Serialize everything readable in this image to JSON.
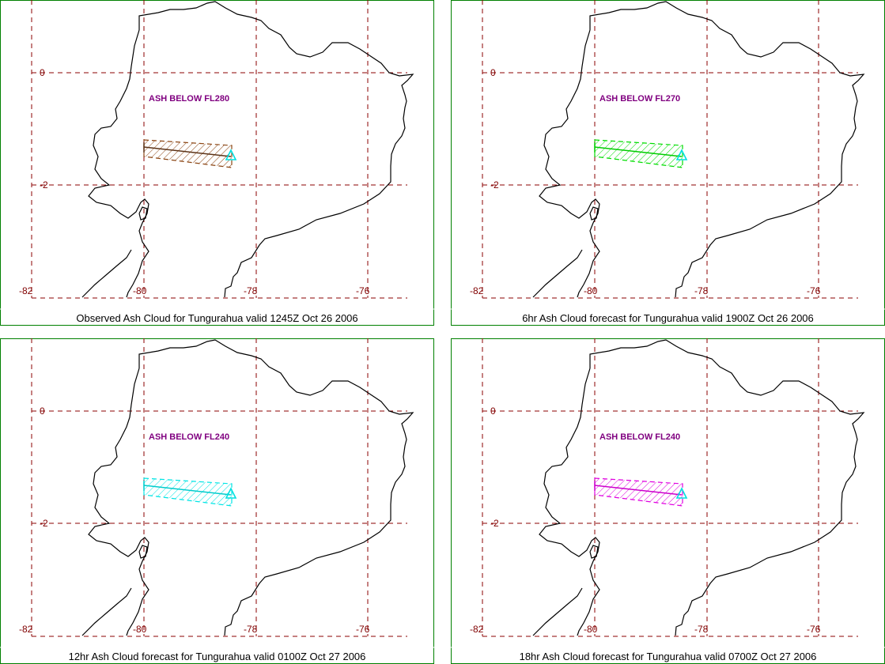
{
  "colors": {
    "frame": "#008000",
    "grid": "#8b0000",
    "tick_label": "#800000",
    "coast": "#000000",
    "ash_label": "#800080",
    "volcano": "#00e0e0"
  },
  "grid_labels": {
    "lat": [
      "0",
      "-2"
    ],
    "lon": [
      "-82",
      "-80",
      "-78",
      "-76"
    ]
  },
  "volcano_icon": "triangle-icon",
  "panels": [
    {
      "ash_label": "ASH BELOW FL280",
      "caption": "Observed Ash Cloud for Tungurahua valid 1245Z Oct 26 2006",
      "cloud_color": "#8b4513",
      "line_color": "#5c3317"
    },
    {
      "ash_label": "ASH BELOW FL270",
      "caption": "6hr Ash Cloud forecast for Tungurahua valid 1900Z Oct 26 2006",
      "cloud_color": "#00dd00",
      "line_color": "#00cc00"
    },
    {
      "ash_label": "ASH BELOW FL240",
      "caption": "12hr Ash Cloud forecast for Tungurahua valid 0100Z Oct 27 2006",
      "cloud_color": "#00e5e5",
      "line_color": "#00cccc"
    },
    {
      "ash_label": "ASH BELOW FL240",
      "caption": "18hr Ash Cloud forecast for Tungurahua valid 0700Z Oct 27 2006",
      "cloud_color": "#e000e0",
      "line_color": "#cc00cc"
    }
  ]
}
